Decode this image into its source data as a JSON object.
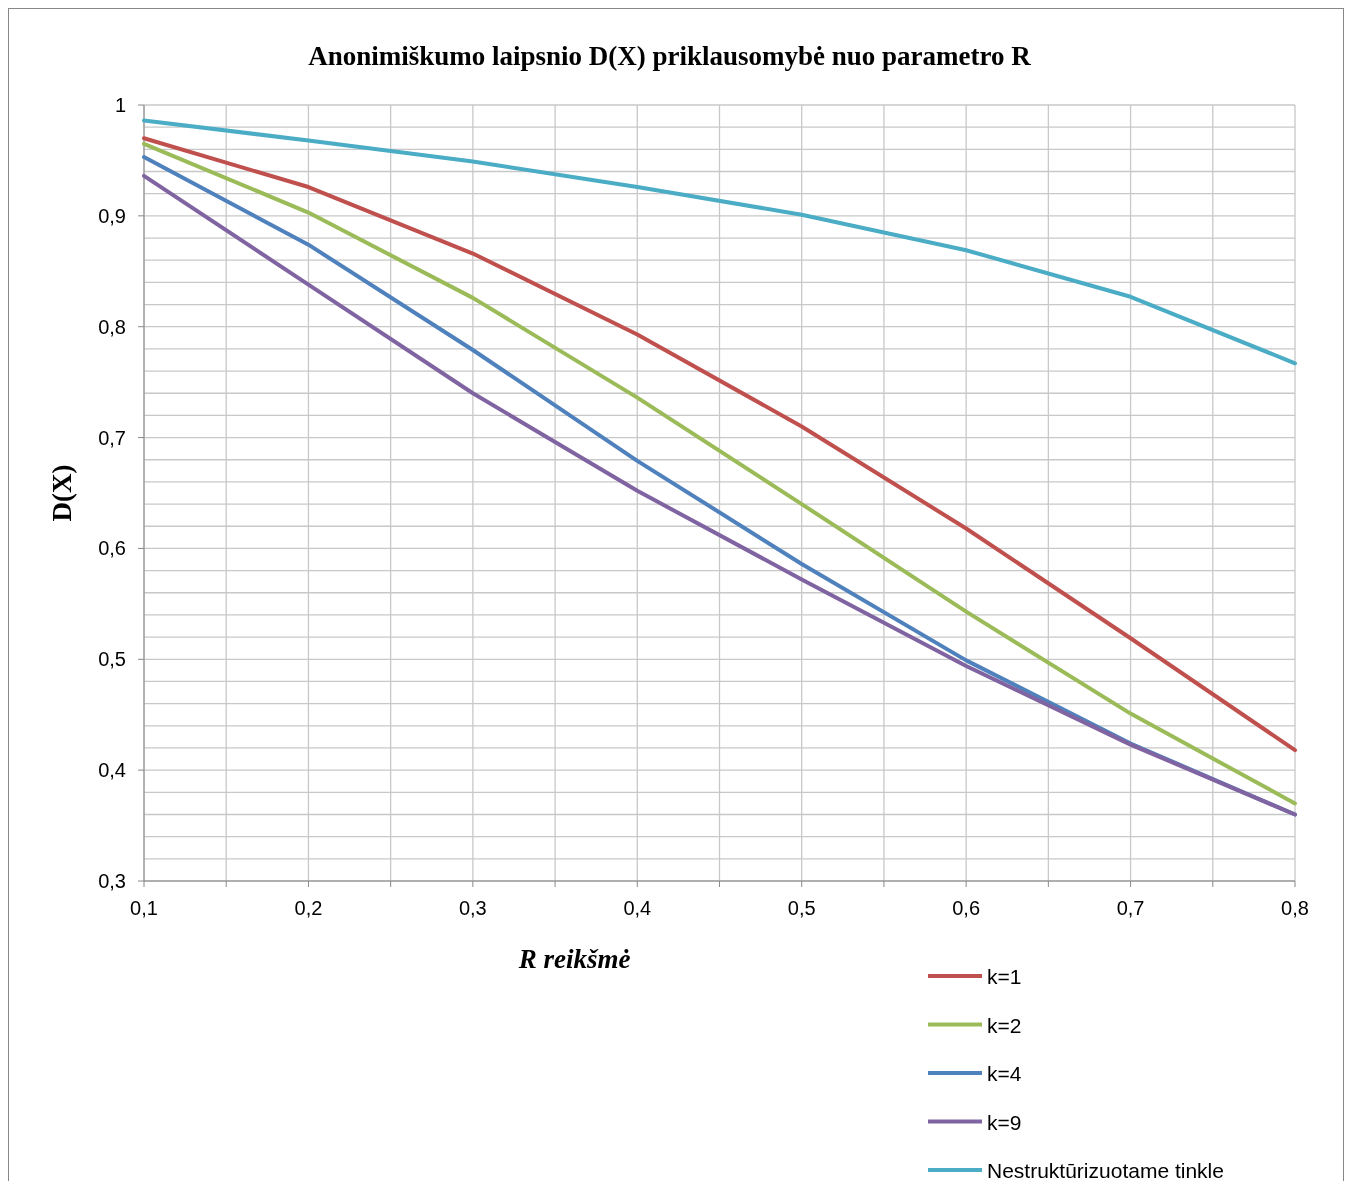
{
  "chart_data": {
    "type": "line",
    "title": "Anonimiškumo laipsnio D(X) priklausomybė nuo parametro R",
    "xlabel": "R reikšmė",
    "ylabel": "D(X)",
    "x": [
      0.1,
      0.2,
      0.3,
      0.4,
      0.5,
      0.6,
      0.7,
      0.8
    ],
    "series": [
      {
        "name": "k=1",
        "color": "#c0504d",
        "values": [
          0.97,
          0.926,
          0.866,
          0.793,
          0.71,
          0.618,
          0.519,
          0.418
        ]
      },
      {
        "name": "k=2",
        "color": "#9bbb59",
        "values": [
          0.965,
          0.903,
          0.826,
          0.736,
          0.64,
          0.543,
          0.451,
          0.37
        ]
      },
      {
        "name": "k=4",
        "color": "#4f81bd",
        "values": [
          0.953,
          0.874,
          0.779,
          0.679,
          0.586,
          0.499,
          0.424,
          0.36
        ]
      },
      {
        "name": "k=9",
        "color": "#8064a2",
        "values": [
          0.936,
          0.838,
          0.74,
          0.652,
          0.572,
          0.494,
          0.423,
          0.36
        ]
      },
      {
        "name": "Nestruktūrizuotame tinkle",
        "color": "#4bacc6",
        "values": [
          0.986,
          0.968,
          0.949,
          0.926,
          0.901,
          0.869,
          0.827,
          0.767
        ]
      }
    ],
    "xlim": [
      0.1,
      0.8
    ],
    "ylim": [
      0.3,
      1
    ],
    "xticks": [
      {
        "value": 0.1,
        "label": "0,1"
      },
      {
        "value": 0.15,
        "label": null
      },
      {
        "value": 0.2,
        "label": "0,2"
      },
      {
        "value": 0.25,
        "label": null
      },
      {
        "value": 0.3,
        "label": "0,3"
      },
      {
        "value": 0.35,
        "label": null
      },
      {
        "value": 0.4,
        "label": "0,4"
      },
      {
        "value": 0.45,
        "label": null
      },
      {
        "value": 0.5,
        "label": "0,5"
      },
      {
        "value": 0.55,
        "label": null
      },
      {
        "value": 0.6,
        "label": "0,6"
      },
      {
        "value": 0.65,
        "label": null
      },
      {
        "value": 0.7,
        "label": "0,7"
      },
      {
        "value": 0.75,
        "label": null
      },
      {
        "value": 0.8,
        "label": "0,8"
      }
    ],
    "yticks": [
      {
        "value": 0.3,
        "label": "0,3"
      },
      {
        "value": 0.32,
        "label": null
      },
      {
        "value": 0.34,
        "label": null
      },
      {
        "value": 0.36,
        "label": null
      },
      {
        "value": 0.38,
        "label": null
      },
      {
        "value": 0.4,
        "label": "0,4"
      },
      {
        "value": 0.42,
        "label": null
      },
      {
        "value": 0.44,
        "label": null
      },
      {
        "value": 0.46,
        "label": null
      },
      {
        "value": 0.48,
        "label": null
      },
      {
        "value": 0.5,
        "label": "0,5"
      },
      {
        "value": 0.52,
        "label": null
      },
      {
        "value": 0.54,
        "label": null
      },
      {
        "value": 0.56,
        "label": null
      },
      {
        "value": 0.58,
        "label": null
      },
      {
        "value": 0.6,
        "label": "0,6"
      },
      {
        "value": 0.62,
        "label": null
      },
      {
        "value": 0.64,
        "label": null
      },
      {
        "value": 0.66,
        "label": null
      },
      {
        "value": 0.68,
        "label": null
      },
      {
        "value": 0.7,
        "label": "0,7"
      },
      {
        "value": 0.72,
        "label": null
      },
      {
        "value": 0.74,
        "label": null
      },
      {
        "value": 0.76,
        "label": null
      },
      {
        "value": 0.78,
        "label": null
      },
      {
        "value": 0.8,
        "label": "0,8"
      },
      {
        "value": 0.82,
        "label": null
      },
      {
        "value": 0.84,
        "label": null
      },
      {
        "value": 0.86,
        "label": null
      },
      {
        "value": 0.88,
        "label": null
      },
      {
        "value": 0.9,
        "label": "0,9"
      },
      {
        "value": 0.92,
        "label": null
      },
      {
        "value": 0.94,
        "label": null
      },
      {
        "value": 0.96,
        "label": null
      },
      {
        "value": 0.98,
        "label": null
      },
      {
        "value": 1,
        "label": "1"
      }
    ],
    "grid": true,
    "legend": "bottom right",
    "marker": "none",
    "line_style": "solid"
  }
}
